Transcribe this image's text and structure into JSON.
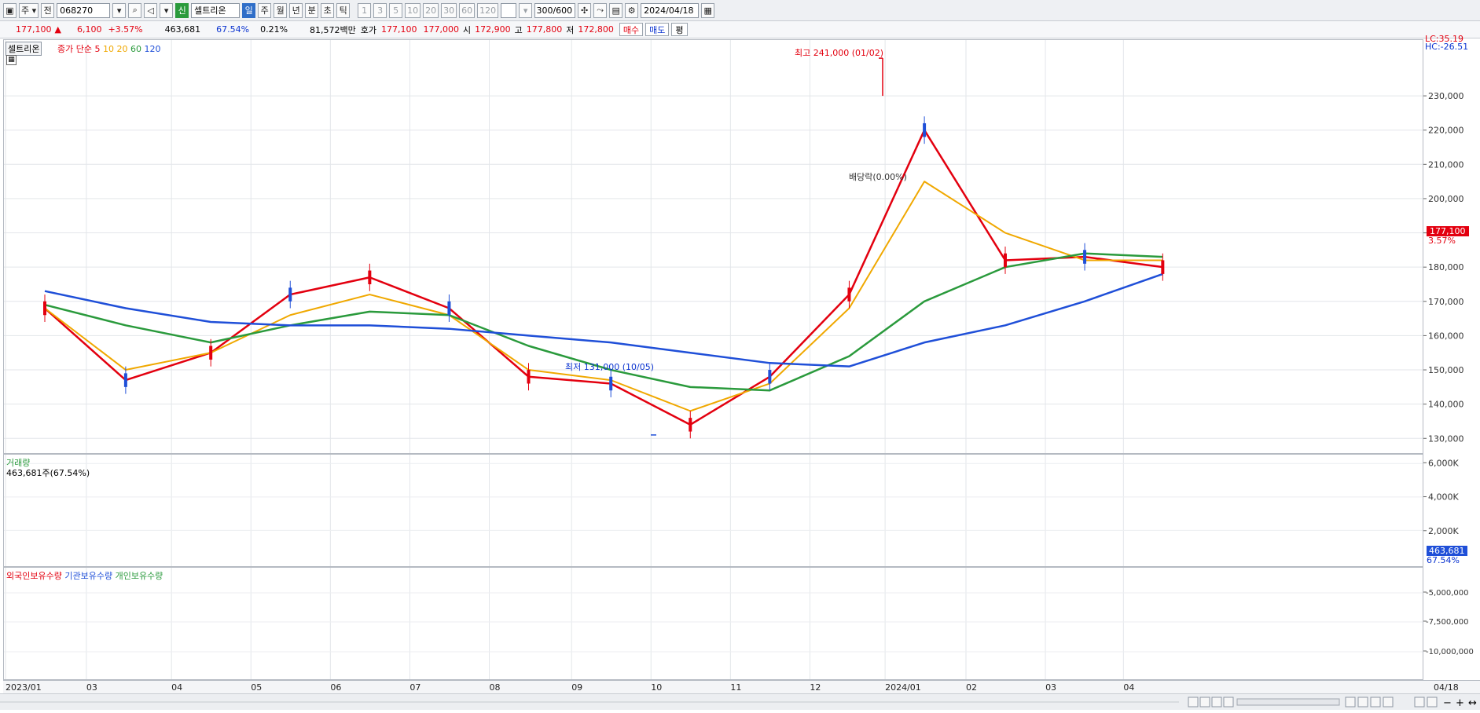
{
  "toolbar": {
    "market_select": "주",
    "prefix": "전",
    "code": "068270",
    "sector_badge": "신",
    "stock_name": "셀트리온",
    "periods": [
      "일",
      "주",
      "월",
      "년",
      "분",
      "초",
      "틱"
    ],
    "active_period": "일",
    "intervals": [
      "1",
      "3",
      "5",
      "10",
      "20",
      "30",
      "60",
      "120"
    ],
    "count": "300",
    "total": "/600",
    "date": "2024/04/18"
  },
  "quote": {
    "price": "177,100",
    "change": "6,100",
    "change_pct": "+3.57%",
    "volume": "463,681",
    "vol_ratio": "67.54%",
    "turnover": "0.21%",
    "amount": "81,572백만",
    "bid_label": "호가",
    "bid1": "177,100",
    "bid2": "177,000",
    "open_label": "시",
    "open": "172,900",
    "high_label": "고",
    "high": "177,800",
    "low_label": "저",
    "low": "172,800",
    "buy": "매수",
    "sell": "매도",
    "eval": "평"
  },
  "legend": {
    "name": "셀트리온",
    "ma_label": "종가 단순",
    "ma_periods": [
      "5",
      "10",
      "20",
      "60",
      "120"
    ],
    "ma_colors": [
      "#e3000f",
      "#f0a800",
      "#f0a800",
      "#2a9a3c",
      "#1f4fd8"
    ]
  },
  "annotations": {
    "high": "최고 241,000 (01/02)",
    "low": "최저 131,000 (10/05)",
    "dividend": "배당락(0.00%)"
  },
  "right_axis": {
    "lc": "LC:35.19",
    "hc": "HC:-26.51",
    "price_ticks": [
      "230,000",
      "220,000",
      "210,000",
      "200,000",
      "190,000",
      "180,000",
      "170,000",
      "160,000",
      "150,000",
      "140,000",
      "130,000"
    ],
    "current_price": "177,100",
    "current_pct": "3.57%",
    "volume_ticks": [
      "6,000K",
      "4,000K",
      "2,000K"
    ],
    "current_volume": "463,681",
    "current_vol_pct": "67.54%",
    "holding_ticks": [
      "-5,000,000",
      "-7,500,000",
      "-10,000,000"
    ]
  },
  "volume_pane": {
    "title": "거래량",
    "subtitle": "463,681주(67.54%)"
  },
  "holding_pane": {
    "legends": [
      "외국인보유수량",
      "기관보유수량",
      "개인보유수량"
    ],
    "colors": [
      "#e3000f",
      "#1f4fd8",
      "#2a9a3c"
    ]
  },
  "x_axis": [
    "2023/01",
    "03",
    "04",
    "05",
    "06",
    "07",
    "08",
    "09",
    "10",
    "11",
    "12",
    "2024/01",
    "02",
    "03",
    "04"
  ],
  "x_axis_end": "04/18",
  "chart_data": {
    "type": "line",
    "title": "",
    "ylim": [
      128000,
      244000
    ],
    "x": [
      "2023/01",
      "03",
      "04",
      "05",
      "06",
      "07",
      "08",
      "09",
      "10",
      "11",
      "12",
      "2024/01",
      "02",
      "03",
      "04"
    ],
    "series": [
      {
        "name": "5",
        "values": [
          168000,
          147000,
          155000,
          172000,
          177000,
          168000,
          148000,
          146000,
          134000,
          148000,
          172000,
          220000,
          182000,
          183000,
          180000
        ]
      },
      {
        "name": "10",
        "values": [
          168000,
          150000,
          155000,
          166000,
          172000,
          166000,
          150000,
          147000,
          138000,
          146000,
          168000,
          205000,
          190000,
          182000,
          182000
        ]
      },
      {
        "name": "60",
        "values": [
          169000,
          163000,
          158000,
          163000,
          167000,
          166000,
          157000,
          150000,
          145000,
          144000,
          154000,
          170000,
          180000,
          184000,
          183000
        ]
      },
      {
        "name": "120",
        "values": [
          173000,
          168000,
          164000,
          163000,
          163000,
          162000,
          160000,
          158000,
          155000,
          152000,
          151000,
          158000,
          163000,
          170000,
          178000
        ]
      }
    ]
  }
}
